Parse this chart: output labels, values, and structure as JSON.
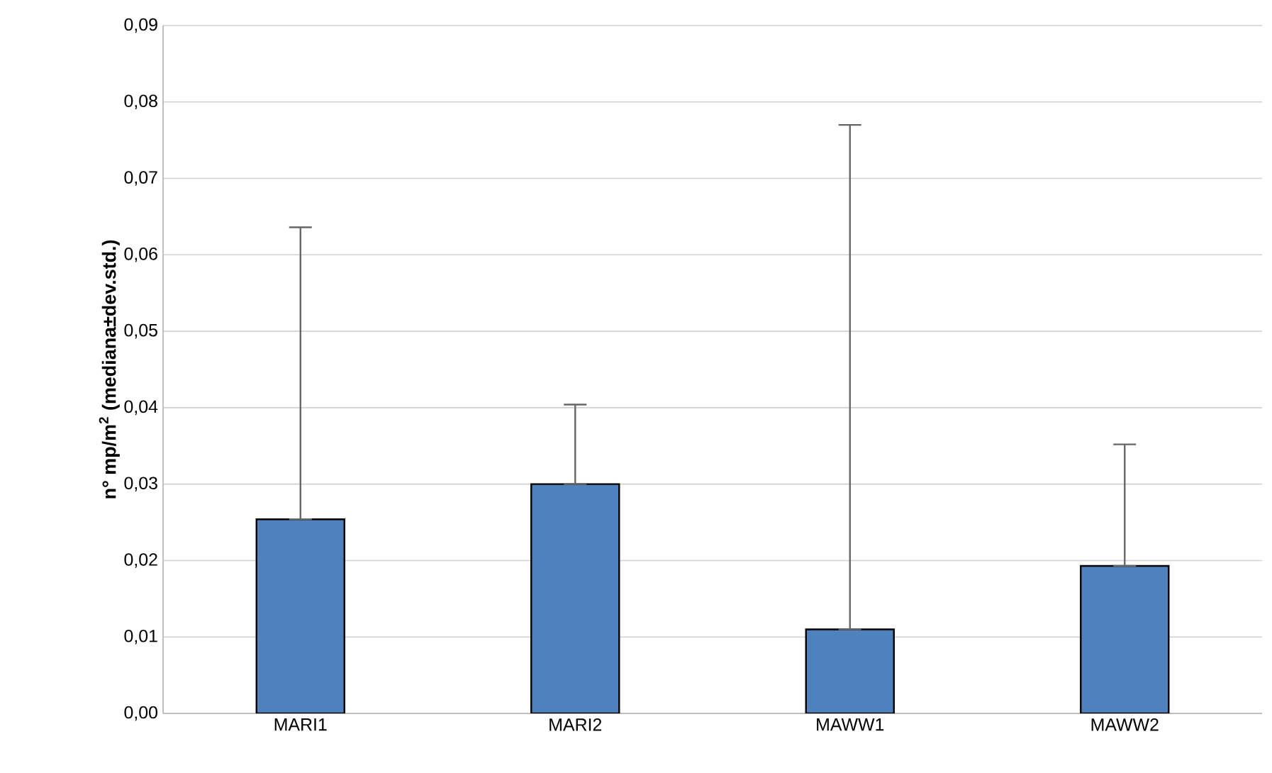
{
  "chart_data": {
    "type": "bar",
    "ylabel": "n° mp/m$^{2}$ (mediana±dev.std.)",
    "categories": [
      "MARI1",
      "MARI2",
      "MAWW1",
      "MAWW2"
    ],
    "values": [
      0.0254,
      0.03,
      0.011,
      0.0193
    ],
    "errors": [
      [
        0.0254,
        0.0636
      ],
      [
        0.03,
        0.0404
      ],
      [
        0.011,
        0.077
      ],
      [
        0.0193,
        0.0352
      ]
    ],
    "color": "#4f81bd",
    "ylim": [
      0,
      0.09
    ],
    "yticks": [
      {
        "value": 0,
        "label": "0,00"
      },
      {
        "value": 0.01,
        "label": "0,01"
      },
      {
        "value": 0.02,
        "label": "0,02"
      },
      {
        "value": 0.03,
        "label": "0,03"
      },
      {
        "value": 0.04,
        "label": "0,04"
      },
      {
        "value": 0.05,
        "label": "0,05"
      },
      {
        "value": 0.06,
        "label": "0,06"
      },
      {
        "value": 0.07,
        "label": "0,07"
      },
      {
        "value": 0.08,
        "label": "0,08"
      },
      {
        "value": 0.09,
        "label": "0,09"
      }
    ],
    "grid": "y"
  }
}
